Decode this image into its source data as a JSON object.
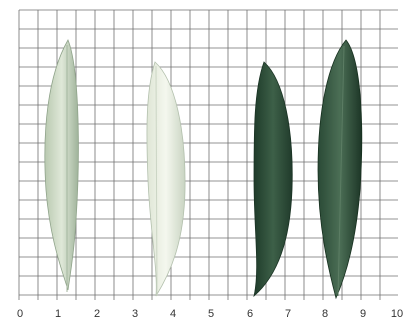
{
  "scale": {
    "labels": [
      "0",
      "1",
      "2",
      "3",
      "4",
      "5",
      "6",
      "7",
      "8",
      "9",
      "10"
    ]
  }
}
